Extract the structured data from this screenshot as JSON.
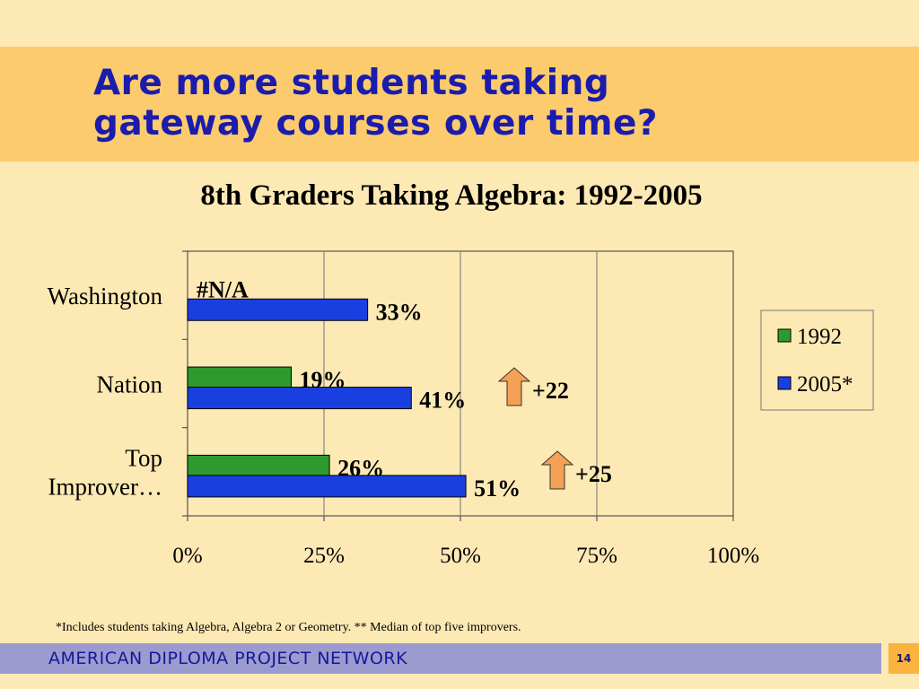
{
  "slide": {
    "title": "Are more students taking gateway courses over time?",
    "footnote": "*Includes students taking Algebra, Algebra 2 or Geometry. ** Median of top five improvers.",
    "footer": "AMERICAN DIPLOMA PROJECT NETWORK",
    "page_number": "14"
  },
  "colors": {
    "background": "#fde9b4",
    "title_band": "#fccb6e",
    "title_text": "#1b1cab",
    "series_1992": "#2e9a2e",
    "series_2005": "#1a3fe0",
    "arrow": "#f5a155",
    "footer_band": "#9b9bcf",
    "page_badge": "#fbb340"
  },
  "chart_data": {
    "type": "bar",
    "orientation": "horizontal",
    "title": "8th Graders Taking Algebra: 1992-2005",
    "categories": [
      "Washington",
      "Nation",
      "Top Improver…"
    ],
    "category_lines": [
      [
        "Washington"
      ],
      [
        "Nation"
      ],
      [
        "Top",
        "Improver…"
      ]
    ],
    "series": [
      {
        "name": "1992",
        "values": [
          null,
          19,
          26
        ],
        "labels": [
          "#N/A",
          "19%",
          "26%"
        ]
      },
      {
        "name": "2005*",
        "values": [
          33,
          41,
          51
        ],
        "labels": [
          "33%",
          "41%",
          "51%"
        ]
      }
    ],
    "x_ticks": [
      "0%",
      "25%",
      "50%",
      "75%",
      "100%"
    ],
    "xlim": [
      0,
      100
    ],
    "grid": "vertical",
    "legend": "right",
    "annotations": [
      {
        "category": "Nation",
        "text": "+22",
        "icon": "up-arrow-icon"
      },
      {
        "category": "Top Improver…",
        "text": "+25",
        "icon": "up-arrow-icon"
      }
    ]
  }
}
